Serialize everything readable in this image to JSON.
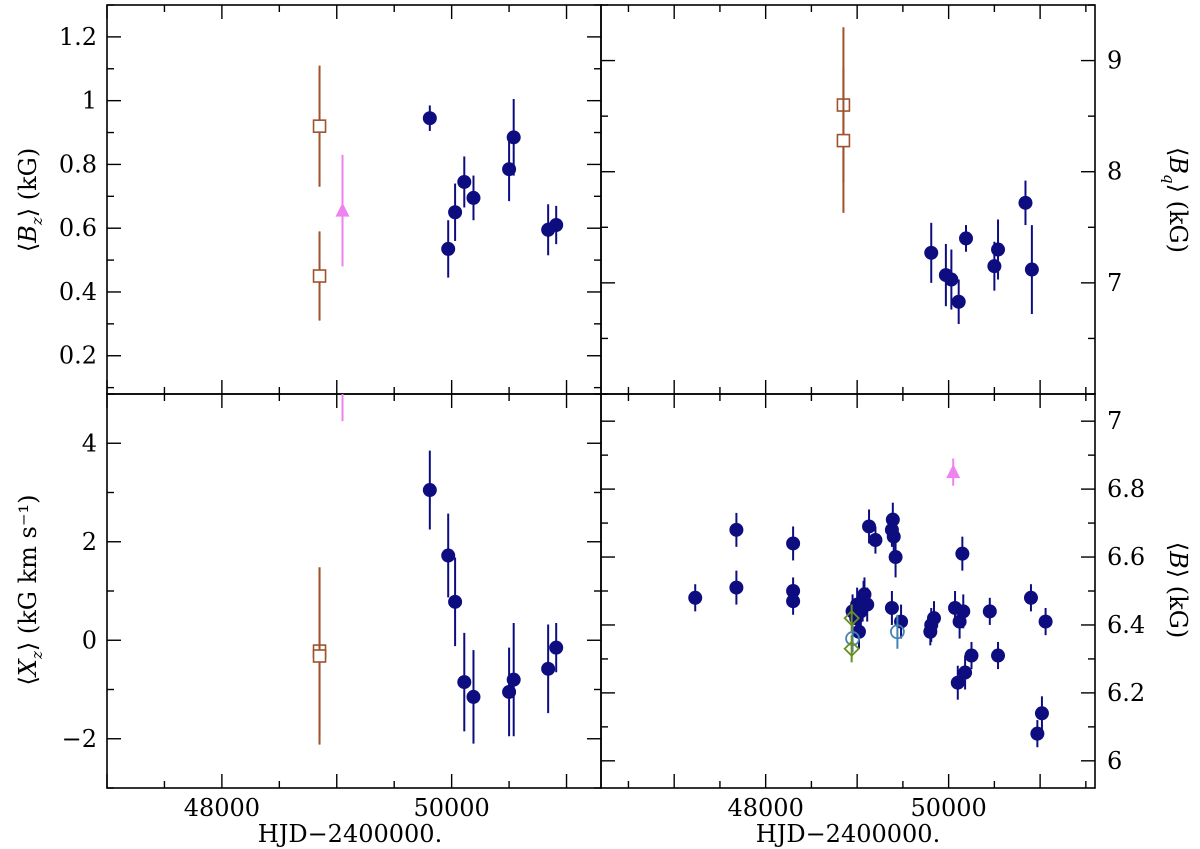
{
  "figure": {
    "xlabel": "HJD−2400000.",
    "panels": [
      {
        "id": "bz",
        "ylabel": "⟨B_z⟩ (kG)",
        "ylabel_parts": {
          "pre": "⟨",
          "main": "B",
          "sub": "z",
          "post": "⟩ (kG)"
        },
        "ylabel_side": "left",
        "ticklabel_side": "left",
        "xlim": [
          47000,
          51300
        ],
        "ylim": [
          0.08,
          1.3
        ],
        "yticks": [
          0.2,
          0.4,
          0.6,
          0.8,
          1.0,
          1.2
        ],
        "ytick_labels": [
          "0.2",
          "0.4",
          "0.6",
          "0.8",
          "1",
          "1.2"
        ],
        "show_xticklabels": false
      },
      {
        "id": "bq",
        "ylabel": "⟨B_q⟩ (kG)",
        "ylabel_parts": {
          "pre": "⟨",
          "main": "B",
          "sub": "q",
          "post": "⟩ (kG)"
        },
        "ylabel_side": "right",
        "ticklabel_side": "right",
        "xlim": [
          46200,
          51600
        ],
        "ylim": [
          6.0,
          9.5
        ],
        "yticks": [
          7,
          8,
          9
        ],
        "ytick_labels": [
          "7",
          "8",
          "9"
        ],
        "show_xticklabels": false
      },
      {
        "id": "xz",
        "ylabel": "⟨X_z⟩ (kG km s⁻¹)",
        "ylabel_parts": {
          "pre": "⟨",
          "main": "X",
          "sub": "z",
          "post": "⟩ (kG km s⁻¹)"
        },
        "ylabel_side": "left",
        "ticklabel_side": "left",
        "xlim": [
          47000,
          51300
        ],
        "ylim": [
          -3.0,
          5.0
        ],
        "yticks": [
          -2,
          0,
          2,
          4
        ],
        "ytick_labels": [
          "−2",
          "0",
          "2",
          "4"
        ],
        "show_xticklabels": true,
        "xticks": [
          48000,
          50000
        ],
        "xtick_labels": [
          "48000",
          "50000"
        ]
      },
      {
        "id": "b",
        "ylabel": "⟨B⟩ (kG)",
        "ylabel_parts": {
          "pre": "⟨",
          "main": "B",
          "sub": "",
          "post": "⟩ (kG)"
        },
        "ylabel_side": "right",
        "ticklabel_side": "right",
        "xlim": [
          46200,
          51600
        ],
        "ylim": [
          5.92,
          7.08
        ],
        "yticks": [
          6.0,
          6.2,
          6.4,
          6.6,
          6.8,
          7.0
        ],
        "ytick_labels": [
          "6",
          "6.2",
          "6.4",
          "6.6",
          "6.8",
          "7"
        ],
        "show_xticklabels": true,
        "xticks": [
          48000,
          50000
        ],
        "xtick_labels": [
          "48000",
          "50000"
        ]
      }
    ]
  },
  "colors": {
    "filled_circle": "#0d0d80",
    "open_square": "#a0522d",
    "triangle": "#ee82ee",
    "open_circle": "#4682b4",
    "diamond": "#6b8e23"
  },
  "chart_data": [
    {
      "type": "scatter",
      "panel": "bz",
      "title": "",
      "xlabel": "HJD−2400000.",
      "ylabel": "⟨Bz⟩ (kG)",
      "xlim": [
        47000,
        51300
      ],
      "ylim": [
        0.08,
        1.3
      ],
      "series": [
        {
          "name": "filled circles",
          "marker": "filled-circle",
          "color": "#0d0d80",
          "x": [
            49810,
            49970,
            50030,
            50110,
            50190,
            50500,
            50540,
            50840,
            50910
          ],
          "y": [
            0.945,
            0.535,
            0.65,
            0.745,
            0.695,
            0.785,
            0.885,
            0.595,
            0.61
          ],
          "yerr": [
            0.04,
            0.09,
            0.09,
            0.08,
            0.07,
            0.1,
            0.12,
            0.08,
            0.06
          ]
        },
        {
          "name": "open squares",
          "marker": "open-square",
          "color": "#a0522d",
          "x": [
            48850,
            48850
          ],
          "y": [
            0.92,
            0.45
          ],
          "yerr": [
            0.19,
            0.14
          ]
        },
        {
          "name": "triangles",
          "marker": "filled-triangle",
          "color": "#ee82ee",
          "x": [
            49050
          ],
          "y": [
            0.655
          ],
          "yerr": [
            0.175
          ]
        }
      ]
    },
    {
      "type": "scatter",
      "panel": "bq",
      "title": "",
      "xlabel": "HJD−2400000.",
      "ylabel": "⟨Bq⟩ (kG)",
      "xlim": [
        46200,
        51600
      ],
      "ylim": [
        6.0,
        9.5
      ],
      "series": [
        {
          "name": "filled circles",
          "marker": "filled-circle",
          "color": "#0d0d80",
          "x": [
            49810,
            49970,
            50030,
            50110,
            50190,
            50500,
            50540,
            50840,
            50910
          ],
          "y": [
            7.27,
            7.07,
            7.03,
            6.83,
            7.4,
            7.15,
            7.3,
            7.72,
            7.12
          ],
          "yerr": [
            0.27,
            0.28,
            0.27,
            0.2,
            0.12,
            0.22,
            0.27,
            0.2,
            0.4
          ]
        },
        {
          "name": "open squares",
          "marker": "open-square",
          "color": "#a0522d",
          "x": [
            48850,
            48850
          ],
          "y": [
            8.6,
            8.28
          ],
          "yerr": [
            0.7,
            0.65
          ]
        }
      ]
    },
    {
      "type": "scatter",
      "panel": "xz",
      "title": "",
      "xlabel": "HJD−2400000.",
      "ylabel": "⟨Xz⟩ (kG km s⁻¹)",
      "xlim": [
        47000,
        51300
      ],
      "ylim": [
        -3.0,
        5.0
      ],
      "series": [
        {
          "name": "filled circles",
          "marker": "filled-circle",
          "color": "#0d0d80",
          "x": [
            49810,
            49970,
            50030,
            50110,
            50190,
            50500,
            50540,
            50840,
            50910
          ],
          "y": [
            3.05,
            1.72,
            0.78,
            -0.85,
            -1.15,
            -1.05,
            -0.8,
            -0.58,
            -0.15
          ],
          "yerr": [
            0.8,
            0.85,
            0.9,
            1.0,
            0.95,
            0.9,
            1.15,
            0.9,
            0.5
          ]
        },
        {
          "name": "open squares",
          "marker": "open-square",
          "color": "#a0522d",
          "x": [
            48850,
            48850
          ],
          "y": [
            -0.22,
            -0.32
          ],
          "yerr": [
            1.7,
            1.8
          ]
        },
        {
          "name": "triangles",
          "marker": "error-bar-only",
          "color": "#ee82ee",
          "x": [
            49050
          ],
          "y": [
            5.3
          ],
          "yerr": [
            0.85
          ]
        }
      ]
    },
    {
      "type": "scatter",
      "panel": "b",
      "title": "",
      "xlabel": "HJD−2400000.",
      "ylabel": "⟨B⟩ (kG)",
      "xlim": [
        46200,
        51600
      ],
      "ylim": [
        5.92,
        7.08
      ],
      "series": [
        {
          "name": "filled circles",
          "marker": "filled-circle",
          "color": "#0d0d80",
          "x": [
            47230,
            47680,
            47680,
            48300,
            48300,
            48300,
            48950,
            48990,
            49000,
            49020,
            49040,
            49060,
            49070,
            49080,
            49110,
            49130,
            49200,
            49380,
            49380,
            49390,
            49400,
            49420,
            49480,
            49800,
            49810,
            49840,
            50070,
            50100,
            50120,
            50150,
            50160,
            50180,
            50250,
            50450,
            50540,
            50900,
            50970,
            51020,
            51060
          ],
          "y": [
            6.48,
            6.68,
            6.51,
            6.64,
            6.5,
            6.47,
            6.44,
            6.42,
            6.46,
            6.38,
            6.44,
            6.46,
            6.48,
            6.49,
            6.46,
            6.69,
            6.65,
            6.68,
            6.45,
            6.71,
            6.66,
            6.6,
            6.41,
            6.38,
            6.4,
            6.42,
            6.45,
            6.23,
            6.41,
            6.61,
            6.44,
            6.26,
            6.31,
            6.44,
            6.31,
            6.48,
            6.08,
            6.14,
            6.41
          ],
          "yerr": [
            0.04,
            0.05,
            0.05,
            0.05,
            0.04,
            0.04,
            0.05,
            0.05,
            0.05,
            0.05,
            0.05,
            0.05,
            0.05,
            0.05,
            0.05,
            0.05,
            0.04,
            0.05,
            0.05,
            0.05,
            0.06,
            0.06,
            0.05,
            0.04,
            0.05,
            0.05,
            0.05,
            0.05,
            0.05,
            0.05,
            0.05,
            0.05,
            0.04,
            0.04,
            0.04,
            0.04,
            0.04,
            0.05,
            0.04
          ]
        },
        {
          "name": "open circles",
          "marker": "open-circle",
          "color": "#4682b4",
          "x": [
            48950,
            49440
          ],
          "y": [
            6.36,
            6.38
          ],
          "yerr": [
            0.04,
            0.05
          ]
        },
        {
          "name": "diamonds",
          "marker": "open-diamond",
          "color": "#6b8e23",
          "x": [
            48940,
            48940
          ],
          "y": [
            6.42,
            6.33
          ],
          "yerr": [
            0.04,
            0.04
          ]
        },
        {
          "name": "triangles",
          "marker": "filled-triangle",
          "color": "#ee82ee",
          "x": [
            50050
          ],
          "y": [
            6.85
          ],
          "yerr": [
            0.04
          ]
        }
      ]
    }
  ]
}
